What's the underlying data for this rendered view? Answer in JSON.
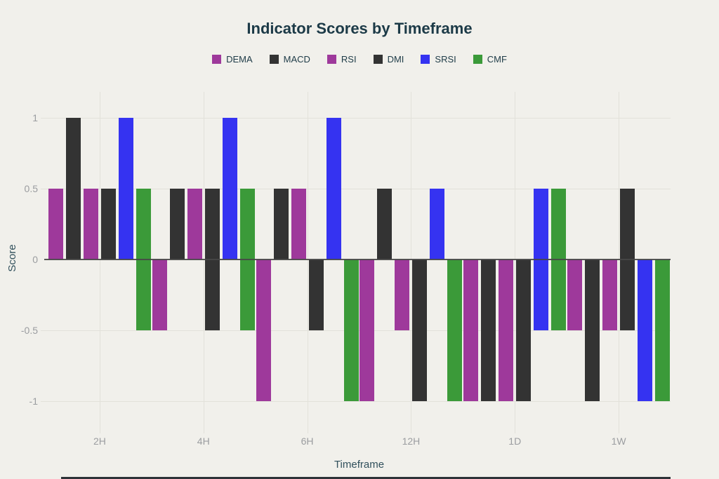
{
  "page": {
    "background_color": "#F1F0EB",
    "bottom_border_color": "#2E3338"
  },
  "chart_data": {
    "type": "bar",
    "title": "Indicator Scores by Timeframe",
    "xlabel": "Timeframe",
    "ylabel": "Score",
    "legend_position": "top",
    "grid": true,
    "categories": [
      "2H",
      "4H",
      "6H",
      "12H",
      "1D",
      "1W"
    ],
    "y_ticks": [
      {
        "label": "1",
        "value": 1
      },
      {
        "label": "0.5",
        "value": 0.5
      },
      {
        "label": "0",
        "value": 0
      },
      {
        "label": "-0.5",
        "value": -0.5
      },
      {
        "label": "-1",
        "value": -1
      }
    ],
    "ylim": [
      -1.17,
      1.18
    ],
    "bar_note": "each bar encoded as [from,to] in score units; most bars start at 0, some span -0.5 to +0.5",
    "series": [
      {
        "name": "DEMA",
        "color": "#9E399B",
        "bars": [
          [
            0,
            0.5
          ],
          [
            -0.5,
            0
          ],
          [
            -1,
            0
          ],
          [
            -1,
            0
          ],
          [
            -1,
            0
          ],
          [
            -0.5,
            0
          ]
        ]
      },
      {
        "name": "MACD",
        "color": "#333333",
        "bars": [
          [
            0,
            1
          ],
          [
            0,
            0.5
          ],
          [
            0,
            0.5
          ],
          [
            0,
            0.5
          ],
          [
            -1,
            0
          ],
          [
            -1,
            0
          ]
        ]
      },
      {
        "name": "RSI",
        "color": "#9E399B",
        "bars": [
          [
            0,
            0.5
          ],
          [
            0,
            0.5
          ],
          [
            0,
            0.5
          ],
          [
            -0.5,
            0
          ],
          [
            -1,
            0
          ],
          [
            -0.5,
            0
          ]
        ]
      },
      {
        "name": "DMI",
        "color": "#333333",
        "bars": [
          [
            0,
            0.5
          ],
          [
            -0.5,
            0.5
          ],
          [
            -0.5,
            0
          ],
          [
            -1,
            0
          ],
          [
            -1,
            0
          ],
          [
            -0.5,
            0.5
          ]
        ]
      },
      {
        "name": "SRSI",
        "color": "#3533F1",
        "bars": [
          [
            0,
            1
          ],
          [
            0,
            1
          ],
          [
            0,
            1
          ],
          [
            0,
            0.5
          ],
          [
            -0.5,
            0.5
          ],
          [
            -1,
            0
          ]
        ]
      },
      {
        "name": "CMF",
        "color": "#3B9A39",
        "bars": [
          [
            -0.5,
            0.5
          ],
          [
            -0.5,
            0.5
          ],
          [
            -1,
            0
          ],
          [
            -1,
            0
          ],
          [
            -0.5,
            0.5
          ],
          [
            -1,
            0
          ]
        ]
      }
    ],
    "style": {
      "grid_color": "#E2E1DA",
      "zero_line_color": "#474747",
      "tick_label_color": "#9B9DA0",
      "axis_title_color": "#31505C",
      "title_color": "#1C3A47",
      "legend_text_color": "#1E3B47"
    }
  }
}
